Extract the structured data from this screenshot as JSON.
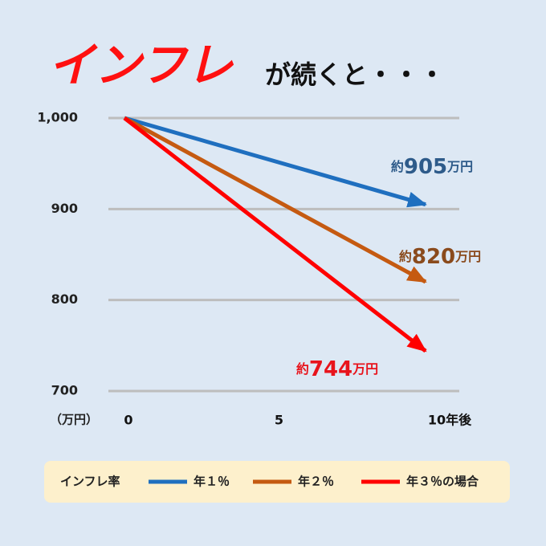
{
  "chart_data": {
    "type": "line",
    "title": "インフレ",
    "subtitle": "が続くと・・・",
    "y_unit": "（万円）",
    "x": [
      0,
      10
    ],
    "xlim": [
      0,
      10
    ],
    "xticks": [
      0,
      5,
      {
        "value": 10,
        "label": "10年後"
      }
    ],
    "ylim": [
      700,
      1000
    ],
    "yticks": [
      700,
      800,
      900,
      {
        "value": 1000,
        "label": "1,000"
      }
    ],
    "grid": true,
    "legend_title": "インフレ率",
    "series": [
      {
        "name": "年１％",
        "color": "#1f6fbf",
        "label_color": "#2e5b8a",
        "values": [
          1000,
          905
        ],
        "value_labels": [
          null,
          "約905万円"
        ]
      },
      {
        "name": "年２％",
        "color": "#c55a11",
        "label_color": "#8a4a1c",
        "values": [
          1000,
          820
        ],
        "value_labels": [
          null,
          "約820万円"
        ]
      },
      {
        "name": "年３％の場合",
        "color": "#ff0000",
        "label_color": "#e8141c",
        "values": [
          1000,
          744
        ],
        "value_labels": [
          null,
          "約744万円"
        ]
      }
    ]
  }
}
